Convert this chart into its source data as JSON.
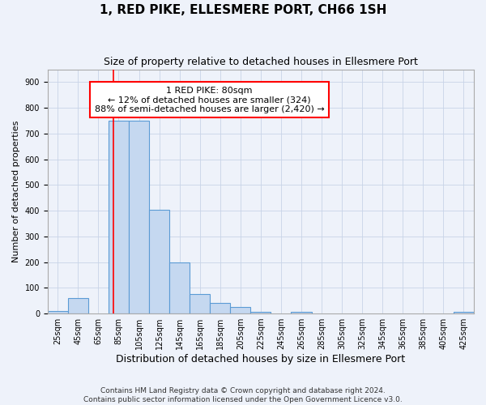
{
  "title": "1, RED PIKE, ELLESMERE PORT, CH66 1SH",
  "subtitle": "Size of property relative to detached houses in Ellesmere Port",
  "xlabel": "Distribution of detached houses by size in Ellesmere Port",
  "ylabel": "Number of detached properties",
  "bin_edges": [
    15,
    35,
    55,
    75,
    95,
    115,
    135,
    155,
    175,
    195,
    215,
    235,
    255,
    275,
    295,
    315,
    335,
    355,
    375,
    395,
    415,
    435
  ],
  "bar_heights": [
    10,
    60,
    0,
    750,
    750,
    405,
    200,
    75,
    40,
    25,
    5,
    0,
    8,
    0,
    0,
    0,
    0,
    0,
    0,
    0,
    5
  ],
  "tick_labels": [
    "25sqm",
    "45sqm",
    "65sqm",
    "85sqm",
    "105sqm",
    "125sqm",
    "145sqm",
    "165sqm",
    "185sqm",
    "205sqm",
    "225sqm",
    "245sqm",
    "265sqm",
    "285sqm",
    "305sqm",
    "325sqm",
    "345sqm",
    "365sqm",
    "385sqm",
    "405sqm",
    "425sqm"
  ],
  "bar_color": "#c5d8f0",
  "bar_edge_color": "#5b9bd5",
  "bar_edge_width": 0.8,
  "grid_color": "#c8d4e8",
  "background_color": "#eef2fa",
  "red_line_x": 80,
  "annotation_text": "1 RED PIKE: 80sqm\n← 12% of detached houses are smaller (324)\n88% of semi-detached houses are larger (2,420) →",
  "annotation_box_color": "white",
  "annotation_border_color": "red",
  "ylim": [
    0,
    950
  ],
  "yticks": [
    0,
    100,
    200,
    300,
    400,
    500,
    600,
    700,
    800,
    900
  ],
  "footer_text": "Contains HM Land Registry data © Crown copyright and database right 2024.\nContains public sector information licensed under the Open Government Licence v3.0.",
  "title_fontsize": 11,
  "subtitle_fontsize": 9,
  "xlabel_fontsize": 9,
  "ylabel_fontsize": 8,
  "tick_fontsize": 7,
  "annotation_fontsize": 8,
  "footer_fontsize": 6.5
}
